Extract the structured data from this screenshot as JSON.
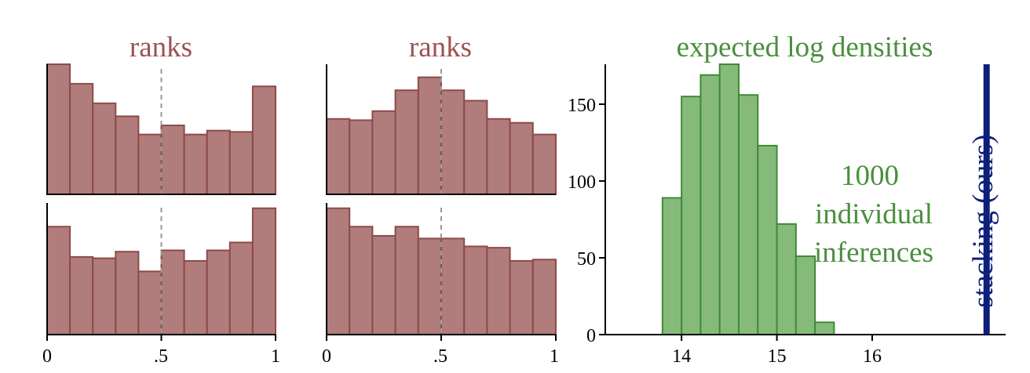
{
  "colors": {
    "rank_fill": "#b07c7c",
    "rank_stroke": "#8e4a4a",
    "rank_title": "#9b5252",
    "hist_fill": "#86ba7a",
    "hist_stroke": "#3f8a35",
    "hist_text": "#4a8f3e",
    "stacking": "#0c1f7a",
    "axis": "#000000",
    "median": "#999999"
  },
  "chart_data": [
    {
      "type": "bar",
      "panel": "ranks-top-left",
      "title": "ranks",
      "bins": 10,
      "xlim": [
        0,
        1
      ],
      "ylim": [
        0,
        100
      ],
      "values": [
        100,
        85,
        70,
        60,
        46,
        53,
        46,
        49,
        48,
        83
      ],
      "median_line": 0.5
    },
    {
      "type": "bar",
      "panel": "ranks-bottom-left",
      "bins": 10,
      "xlim": [
        0,
        1
      ],
      "ylim": [
        0,
        100
      ],
      "values": [
        82,
        59,
        58,
        63,
        48,
        64,
        56,
        64,
        70,
        96
      ],
      "median_line": 0.5,
      "xticks": [
        "0",
        ".5",
        "1"
      ]
    },
    {
      "type": "bar",
      "panel": "ranks-top-mid",
      "title": "ranks",
      "bins": 10,
      "xlim": [
        0,
        1
      ],
      "ylim": [
        0,
        100
      ],
      "values": [
        58,
        57,
        64,
        80,
        90,
        80,
        72,
        58,
        55,
        46
      ],
      "median_line": 0.5
    },
    {
      "type": "bar",
      "panel": "ranks-bottom-mid",
      "bins": 10,
      "xlim": [
        0,
        1
      ],
      "ylim": [
        0,
        100
      ],
      "values": [
        96,
        82,
        75,
        82,
        73,
        73,
        67,
        66,
        56,
        57
      ],
      "median_line": 0.5,
      "xticks": [
        "0",
        ".5",
        "1"
      ]
    },
    {
      "type": "bar",
      "panel": "expected-log-densities",
      "title": "expected log densities",
      "bin_edges": [
        13.8,
        14.0,
        14.2,
        14.4,
        14.6,
        14.8,
        15.0,
        15.2,
        15.4,
        15.6
      ],
      "values": [
        89,
        155,
        169,
        176,
        156,
        123,
        72,
        51,
        8
      ],
      "xlim": [
        13.2,
        17.4
      ],
      "ylim": [
        0,
        176
      ],
      "xticks": [
        14,
        15,
        16
      ],
      "yticks": [
        0,
        50,
        100,
        150
      ],
      "annotation": [
        "1000",
        "individual",
        "inferences"
      ],
      "stacking_line": {
        "x": 17.2,
        "label": "stacking (ours)"
      }
    }
  ]
}
